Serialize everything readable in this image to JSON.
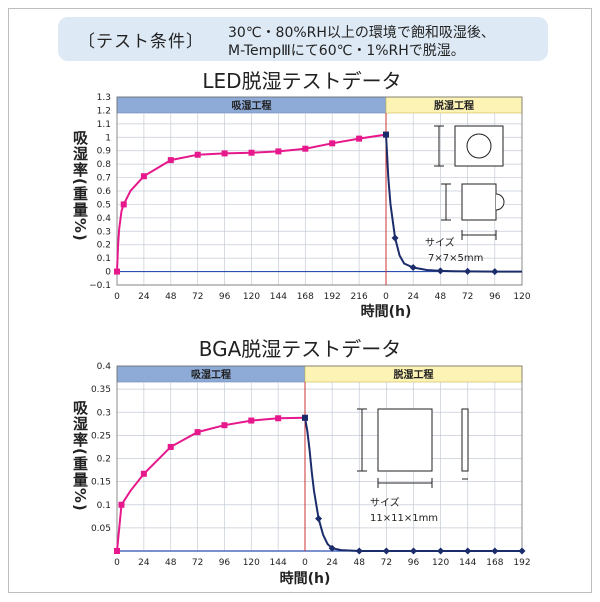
{
  "header": {
    "label": "〔テスト条件〕",
    "condition_line1": "30℃・80%RH以上の環境で飽和吸湿後、",
    "condition_line2": "M-TempⅢにて60℃・1%RHで脱湿。"
  },
  "colors": {
    "absorb_series": "#e6188b",
    "desorb_series": "#1b2c6b",
    "absorb_band": "#8eaad6",
    "desorb_band": "#fdf3b5",
    "grid": "#c5ccd6",
    "baseline": "#2b4fb0",
    "divider": "#cc3333"
  },
  "chart_data": [
    {
      "type": "line",
      "title": "LED脱湿テストデータ",
      "ylabel": "吸湿率(重量%)",
      "xlabel": "時間(h)",
      "phase_absorb": "吸湿工程",
      "phase_desorb": "脱湿工程",
      "size_label": "サイズ",
      "size_value": "7×7×5mm",
      "ylim": [
        -0.1,
        1.3
      ],
      "yticks": [
        "1.3",
        "1.1",
        "0.9",
        "0.7",
        "0.5",
        "0.3",
        "0.1",
        "-0.1"
      ],
      "y_ticks_values": [
        1.3,
        1.2,
        1.1,
        1,
        0.9,
        0.8,
        0.7,
        0.6,
        0.5,
        0.4,
        0.3,
        0.2,
        0.1,
        0,
        -0.1
      ],
      "y_ticks_labels": [
        "1.3",
        "1.2",
        "1.1",
        "1",
        "0.9",
        "0.8",
        "0.7",
        "0.6",
        "0.5",
        "0.4",
        "0.3",
        "0.2",
        "0.1",
        "0",
        "−0.1"
      ],
      "absorb_xlim": [
        0,
        240
      ],
      "absorb_xticks": [
        "0",
        "24",
        "48",
        "72",
        "96",
        "120",
        "144",
        "168",
        "192",
        "216",
        "0"
      ],
      "absorb_xtick_values": [
        0,
        24,
        48,
        72,
        96,
        120,
        144,
        168,
        192,
        216,
        240
      ],
      "desorb_xlim": [
        0,
        120
      ],
      "desorb_xticks": [
        "24",
        "48",
        "72",
        "96",
        "120"
      ],
      "desorb_xtick_values": [
        24,
        48,
        72,
        96,
        120
      ],
      "series": [
        {
          "name": "吸湿工程",
          "x": [
            0,
            1,
            2,
            4,
            6,
            12,
            24,
            48,
            72,
            96,
            120,
            144,
            168,
            192,
            216,
            240
          ],
          "y": [
            0,
            0.2,
            0.32,
            0.45,
            0.5,
            0.6,
            0.71,
            0.83,
            0.87,
            0.88,
            0.885,
            0.895,
            0.915,
            0.955,
            0.99,
            1.02
          ],
          "markers": [
            0,
            4,
            6,
            7,
            8,
            9,
            10,
            11,
            12,
            13,
            14,
            15
          ]
        },
        {
          "name": "脱湿工程",
          "x": [
            0,
            1,
            2,
            4,
            8,
            12,
            16,
            24,
            36,
            48,
            60,
            72,
            84,
            96,
            108,
            120
          ],
          "y": [
            1.02,
            0.87,
            0.7,
            0.5,
            0.25,
            0.12,
            0.06,
            0.03,
            0.012,
            0.005,
            0.002,
            0.001,
            0.0005,
            0,
            0,
            0
          ],
          "markers": [
            0,
            4,
            7,
            9,
            11,
            13
          ]
        }
      ]
    },
    {
      "type": "line",
      "title": "BGA脱湿テストデータ",
      "ylabel": "吸湿率(重量%)",
      "xlabel": "時間(h)",
      "phase_absorb": "吸湿工程",
      "phase_desorb": "脱湿工程",
      "size_label": "サイズ",
      "size_value": "11×11×1mm",
      "ylim": [
        0,
        0.4
      ],
      "y_ticks_values": [
        0.4,
        0.35,
        0.3,
        0.25,
        0.2,
        0.15,
        0.1,
        0.05
      ],
      "y_ticks_labels": [
        "0.4",
        "0.35",
        "0.3",
        "0.25",
        "0.2",
        "0.15",
        "0.1",
        "0.05"
      ],
      "absorb_xlim": [
        0,
        168
      ],
      "absorb_xticks": [
        "0",
        "24",
        "48",
        "72",
        "96",
        "120",
        "144"
      ],
      "absorb_xtick_values": [
        0,
        24,
        48,
        72,
        96,
        120,
        144
      ],
      "desorb_xlim": [
        0,
        192
      ],
      "desorb_xticks": [
        "0",
        "24",
        "48",
        "72",
        "96",
        "120",
        "144",
        "168",
        "192"
      ],
      "desorb_xtick_values": [
        0,
        24,
        48,
        72,
        96,
        120,
        144,
        168,
        192
      ],
      "series": [
        {
          "name": "吸湿工程",
          "x": [
            0,
            4,
            12,
            24,
            48,
            72,
            96,
            120,
            144,
            168
          ],
          "y": [
            0,
            0.1,
            0.13,
            0.167,
            0.225,
            0.257,
            0.272,
            0.282,
            0.287,
            0.288
          ],
          "markers": [
            0,
            1,
            3,
            4,
            5,
            6,
            7,
            8,
            9
          ]
        },
        {
          "name": "脱湿工程",
          "x": [
            0,
            2,
            4,
            6,
            8,
            12,
            16,
            20,
            24,
            32,
            48,
            72,
            96,
            120,
            144,
            168,
            192
          ],
          "y": [
            0.288,
            0.26,
            0.22,
            0.17,
            0.13,
            0.07,
            0.035,
            0.015,
            0.006,
            0.002,
            0,
            0,
            0,
            0,
            0,
            0,
            0
          ],
          "markers": [
            0,
            5,
            8,
            10,
            11,
            12,
            13,
            14,
            15,
            16
          ]
        }
      ]
    }
  ]
}
